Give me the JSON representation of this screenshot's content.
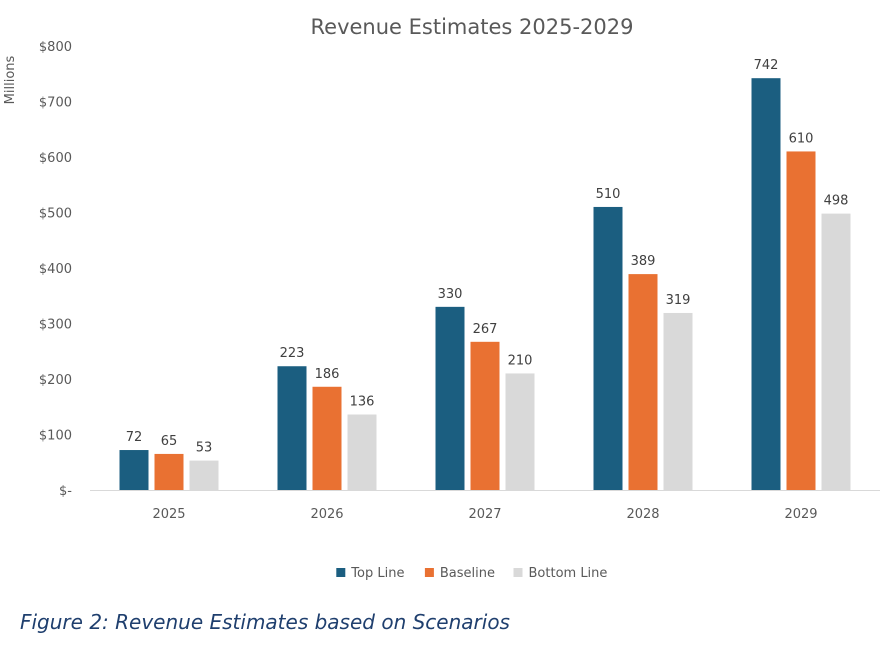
{
  "chart_data": {
    "type": "bar",
    "title": "Revenue Estimates 2025-2029",
    "ylabel": "Millions",
    "xlabel": "",
    "categories": [
      "2025",
      "2026",
      "2027",
      "2028",
      "2029"
    ],
    "series": [
      {
        "name": "Top Line",
        "color": "#1b5e80",
        "values": [
          72,
          223,
          330,
          510,
          742
        ]
      },
      {
        "name": "Baseline",
        "color": "#e97132",
        "values": [
          65,
          186,
          267,
          389,
          610
        ]
      },
      {
        "name": "Bottom Line",
        "color": "#d9d9d9",
        "values": [
          53,
          136,
          210,
          319,
          498
        ]
      }
    ],
    "ylim": [
      0,
      800
    ],
    "yticks": [
      0,
      100,
      200,
      300,
      400,
      500,
      600,
      700,
      800
    ],
    "ytick_labels": [
      "$-",
      "$100",
      "$200",
      "$300",
      "$400",
      "$500",
      "$600",
      "$700",
      "$800"
    ],
    "grid": false,
    "legend_position": "bottom"
  },
  "caption": "Figure 2: Revenue Estimates based on Scenarios"
}
